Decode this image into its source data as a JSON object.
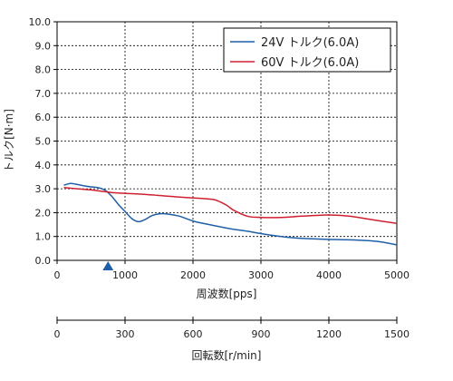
{
  "chart_data": {
    "type": "line",
    "ylabel": "トルク[N·m]",
    "xlabel": "周波数[pps]",
    "x2label": "回転数[r/min]",
    "xlim": [
      0,
      5000
    ],
    "ylim": [
      0,
      10
    ],
    "x_ticks": [
      "0",
      "1000",
      "2000",
      "3000",
      "4000",
      "5000"
    ],
    "x2_ticks": [
      "0",
      "300",
      "600",
      "900",
      "1200",
      "1500"
    ],
    "y_ticks": [
      "0.0",
      "1.0",
      "2.0",
      "3.0",
      "4.0",
      "5.0",
      "6.0",
      "7.0",
      "8.0",
      "9.0",
      "10.0"
    ],
    "grid": true,
    "legend_position": "top-right",
    "marker_x": 750,
    "series": [
      {
        "name": "24V トルク(6.0A)",
        "color": "#1f5fa8",
        "x": [
          100,
          200,
          300,
          400,
          500,
          600,
          700,
          800,
          900,
          1000,
          1100,
          1200,
          1300,
          1400,
          1500,
          1600,
          1800,
          2000,
          2200,
          2500,
          2800,
          3000,
          3300,
          3600,
          4000,
          4400,
          4700,
          5000
        ],
        "y": [
          3.15,
          3.22,
          3.18,
          3.12,
          3.08,
          3.05,
          2.95,
          2.7,
          2.35,
          2.05,
          1.75,
          1.62,
          1.72,
          1.88,
          1.95,
          1.95,
          1.85,
          1.65,
          1.52,
          1.35,
          1.22,
          1.12,
          1.0,
          0.92,
          0.88,
          0.85,
          0.8,
          0.65
        ]
      },
      {
        "name": "60V トルク(6.0A)",
        "color": "#d02030",
        "x": [
          100,
          300,
          500,
          700,
          900,
          1200,
          1500,
          1800,
          2100,
          2300,
          2400,
          2500,
          2600,
          2800,
          3000,
          3300,
          3600,
          4000,
          4300,
          4600,
          5000
        ],
        "y": [
          3.05,
          3.0,
          2.95,
          2.88,
          2.82,
          2.78,
          2.72,
          2.65,
          2.6,
          2.55,
          2.45,
          2.3,
          2.1,
          1.85,
          1.8,
          1.8,
          1.85,
          1.9,
          1.85,
          1.72,
          1.55
        ]
      }
    ]
  }
}
